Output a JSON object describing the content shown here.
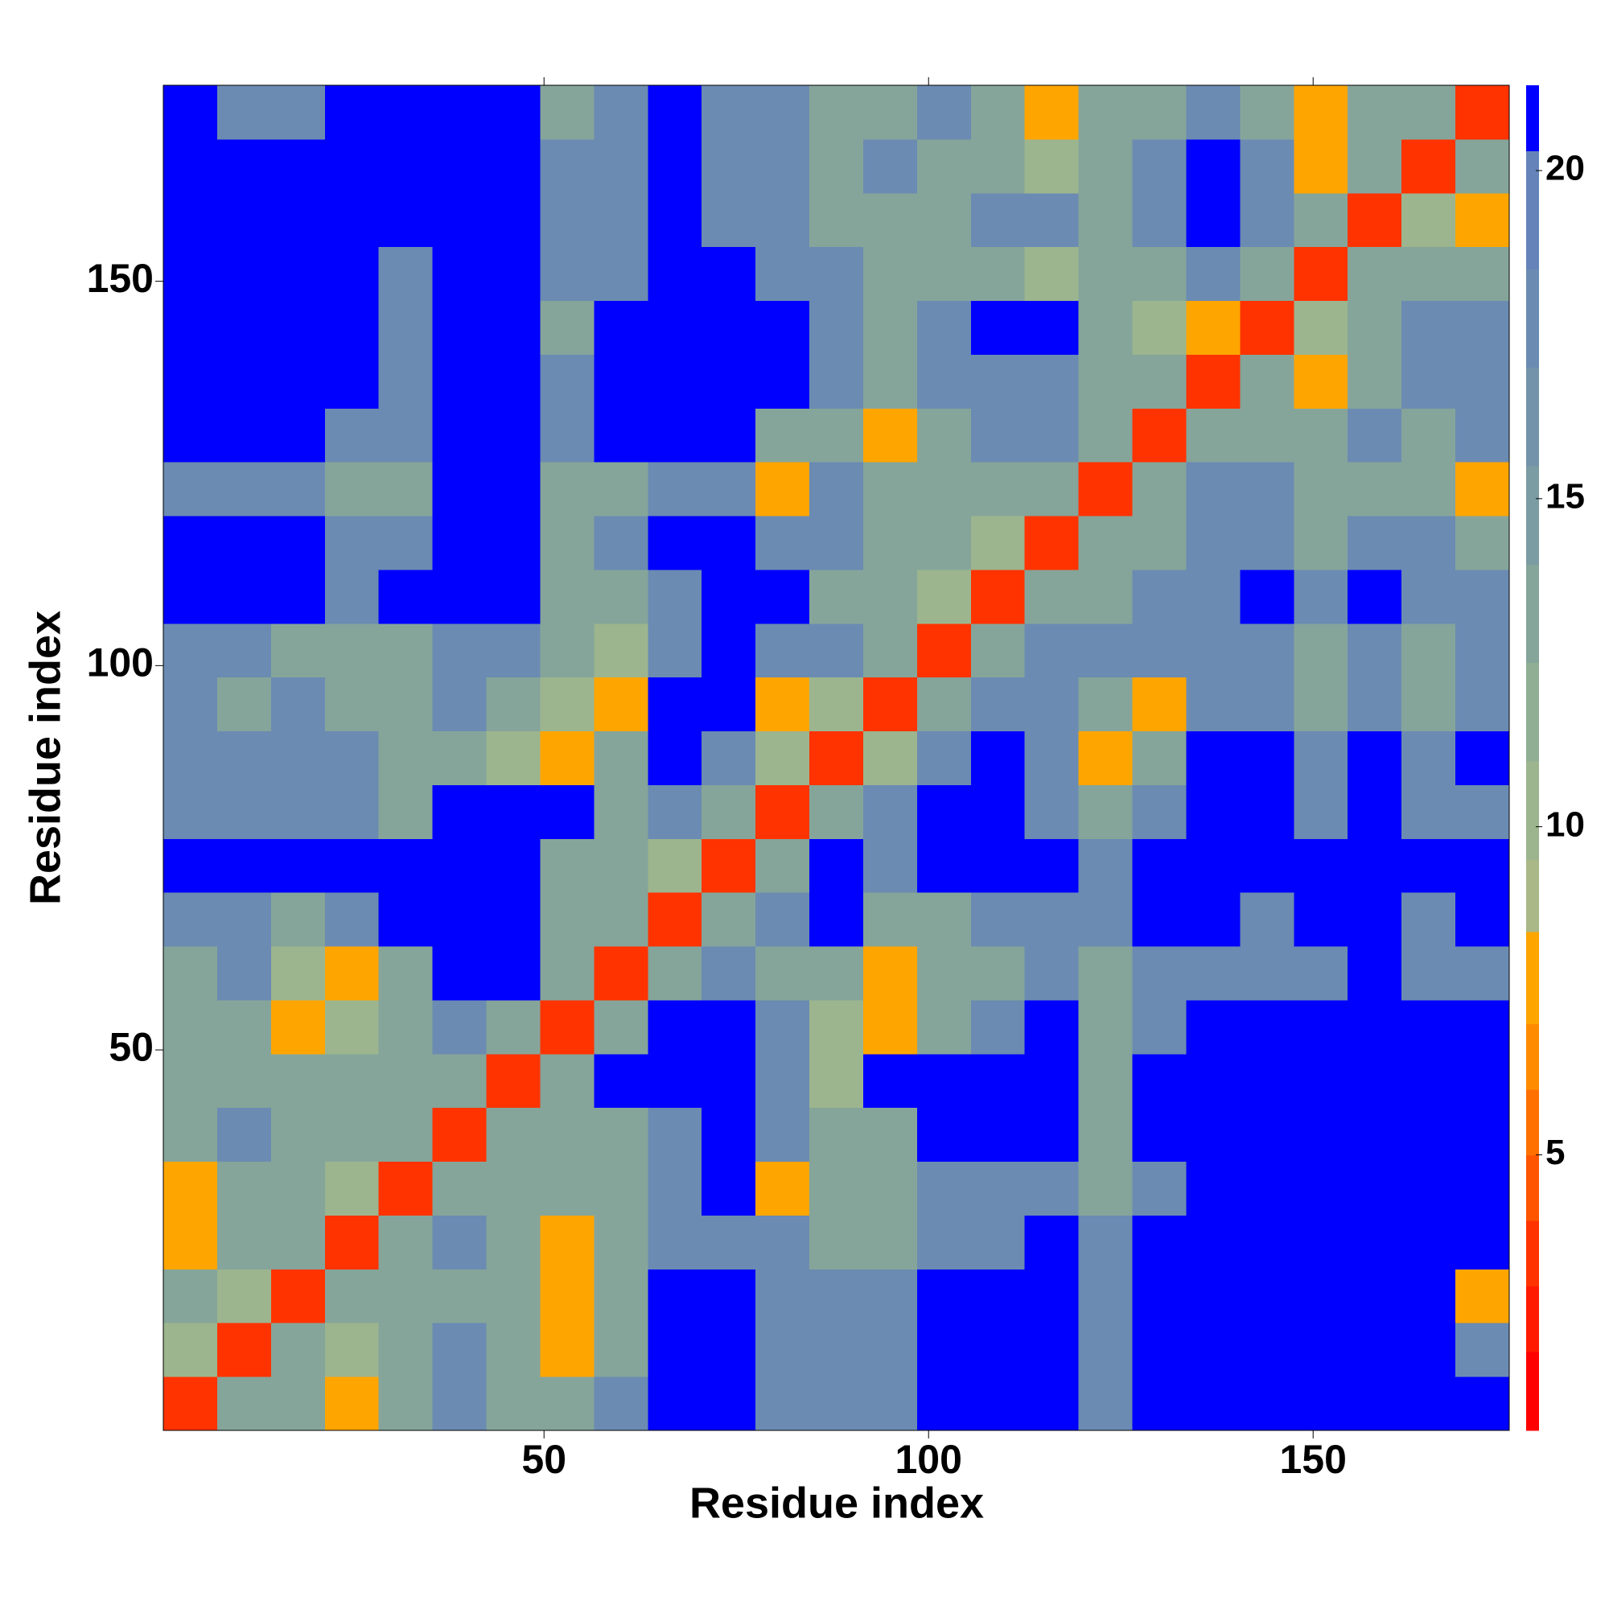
{
  "chart_data": {
    "type": "heatmap",
    "xlabel": "Residue index",
    "ylabel": "Residue index",
    "x": [
      4,
      11,
      18,
      25,
      32,
      39,
      46,
      53,
      60,
      67,
      74,
      81,
      88,
      95,
      102,
      109,
      116,
      123,
      130,
      137,
      144,
      151,
      158,
      165,
      172
    ],
    "y": [
      4,
      11,
      18,
      25,
      32,
      39,
      46,
      53,
      60,
      67,
      74,
      81,
      88,
      95,
      102,
      109,
      116,
      123,
      130,
      137,
      144,
      151,
      158,
      165,
      172
    ],
    "z": [
      [
        3,
        13,
        13,
        7,
        13,
        17,
        13,
        13,
        17,
        21,
        21,
        17,
        17,
        17,
        21,
        21,
        21,
        17,
        21,
        21,
        21,
        21,
        21,
        21,
        21
      ],
      [
        10,
        3,
        13,
        10,
        13,
        17,
        13,
        7,
        13,
        21,
        21,
        17,
        17,
        17,
        21,
        21,
        21,
        17,
        21,
        21,
        21,
        21,
        21,
        21,
        17
      ],
      [
        13,
        10,
        3,
        13,
        13,
        13,
        13,
        7,
        13,
        21,
        21,
        17,
        17,
        17,
        21,
        21,
        21,
        17,
        21,
        21,
        21,
        21,
        21,
        21,
        7
      ],
      [
        7,
        13,
        13,
        3,
        13,
        17,
        13,
        7,
        13,
        17,
        17,
        17,
        13,
        13,
        17,
        17,
        21,
        17,
        21,
        21,
        21,
        21,
        21,
        21,
        21
      ],
      [
        7,
        13,
        13,
        10,
        3,
        13,
        13,
        13,
        13,
        17,
        21,
        7,
        13,
        13,
        17,
        17,
        17,
        13,
        17,
        21,
        21,
        21,
        21,
        21,
        21
      ],
      [
        13,
        17,
        13,
        13,
        13,
        3,
        13,
        13,
        13,
        17,
        21,
        17,
        13,
        13,
        21,
        21,
        21,
        13,
        21,
        21,
        21,
        21,
        21,
        21,
        21
      ],
      [
        13,
        13,
        13,
        13,
        13,
        13,
        3,
        13,
        21,
        21,
        21,
        17,
        10,
        21,
        21,
        21,
        21,
        13,
        21,
        21,
        21,
        21,
        21,
        21,
        21
      ],
      [
        13,
        13,
        7,
        10,
        13,
        17,
        13,
        3,
        13,
        21,
        21,
        17,
        10,
        7,
        13,
        17,
        21,
        13,
        17,
        21,
        21,
        21,
        21,
        21,
        21
      ],
      [
        13,
        17,
        10,
        7,
        13,
        21,
        21,
        13,
        3,
        13,
        17,
        13,
        13,
        7,
        13,
        13,
        17,
        13,
        17,
        17,
        17,
        17,
        21,
        17,
        17
      ],
      [
        17,
        17,
        13,
        17,
        21,
        21,
        21,
        13,
        13,
        3,
        13,
        17,
        21,
        13,
        13,
        17,
        17,
        17,
        21,
        21,
        17,
        21,
        21,
        17,
        21
      ],
      [
        21,
        21,
        21,
        21,
        21,
        21,
        21,
        13,
        13,
        10,
        3,
        13,
        21,
        17,
        21,
        21,
        21,
        17,
        21,
        21,
        21,
        21,
        21,
        21,
        21
      ],
      [
        17,
        17,
        17,
        17,
        13,
        21,
        21,
        21,
        13,
        17,
        13,
        3,
        13,
        17,
        21,
        21,
        17,
        13,
        17,
        21,
        21,
        17,
        21,
        17,
        17
      ],
      [
        17,
        17,
        17,
        17,
        13,
        13,
        10,
        7,
        13,
        21,
        17,
        10,
        3,
        10,
        17,
        21,
        17,
        7,
        13,
        21,
        21,
        17,
        21,
        17,
        21
      ],
      [
        17,
        13,
        17,
        13,
        13,
        17,
        13,
        10,
        7,
        21,
        21,
        7,
        10,
        3,
        13,
        17,
        17,
        13,
        7,
        17,
        17,
        13,
        17,
        13,
        17
      ],
      [
        17,
        17,
        13,
        13,
        13,
        17,
        17,
        13,
        10,
        17,
        21,
        17,
        17,
        13,
        3,
        13,
        17,
        17,
        17,
        17,
        17,
        13,
        17,
        13,
        17
      ],
      [
        21,
        21,
        21,
        17,
        21,
        21,
        21,
        13,
        13,
        17,
        21,
        21,
        13,
        13,
        10,
        3,
        13,
        13,
        17,
        17,
        21,
        17,
        21,
        17,
        17
      ],
      [
        21,
        21,
        21,
        17,
        17,
        21,
        21,
        13,
        17,
        21,
        21,
        17,
        17,
        13,
        13,
        10,
        3,
        13,
        13,
        17,
        17,
        13,
        17,
        17,
        13
      ],
      [
        17,
        17,
        17,
        13,
        13,
        21,
        21,
        13,
        13,
        17,
        17,
        7,
        17,
        13,
        13,
        13,
        13,
        3,
        13,
        17,
        17,
        13,
        13,
        13,
        7
      ],
      [
        21,
        21,
        21,
        17,
        17,
        21,
        21,
        17,
        21,
        21,
        21,
        13,
        13,
        7,
        13,
        17,
        17,
        13,
        3,
        13,
        13,
        13,
        17,
        13,
        17
      ],
      [
        21,
        21,
        21,
        21,
        17,
        21,
        21,
        17,
        21,
        21,
        21,
        21,
        17,
        13,
        17,
        17,
        17,
        13,
        13,
        3,
        13,
        7,
        13,
        17,
        17
      ],
      [
        21,
        21,
        21,
        21,
        17,
        21,
        21,
        13,
        21,
        21,
        21,
        21,
        17,
        13,
        17,
        21,
        21,
        13,
        10,
        7,
        3,
        10,
        13,
        17,
        17
      ],
      [
        21,
        21,
        21,
        21,
        17,
        21,
        21,
        17,
        17,
        21,
        21,
        17,
        17,
        13,
        13,
        13,
        10,
        13,
        13,
        17,
        13,
        3,
        13,
        13,
        13
      ],
      [
        21,
        21,
        21,
        21,
        21,
        21,
        21,
        17,
        17,
        21,
        17,
        17,
        13,
        13,
        13,
        17,
        17,
        13,
        17,
        21,
        17,
        13,
        3,
        10,
        7
      ],
      [
        21,
        21,
        21,
        21,
        21,
        21,
        21,
        17,
        17,
        21,
        17,
        17,
        13,
        17,
        13,
        13,
        10,
        13,
        17,
        21,
        17,
        7,
        13,
        3,
        13
      ],
      [
        21,
        17,
        17,
        21,
        21,
        21,
        21,
        13,
        17,
        21,
        17,
        17,
        13,
        13,
        17,
        13,
        7,
        13,
        13,
        17,
        13,
        7,
        13,
        13,
        3
      ]
    ],
    "xlim": [
      0.5,
      175.5
    ],
    "ylim": [
      0.5,
      175.5
    ],
    "xticks": [
      50,
      100,
      150
    ],
    "yticks": [
      50,
      100,
      150
    ],
    "clim": [
      0.8,
      21.3
    ],
    "cticks": [
      5,
      10,
      15,
      20
    ],
    "color_bounds": [
      2,
      3,
      4,
      5,
      6,
      7,
      8.4,
      9.5,
      11,
      12.5,
      14,
      15.5,
      17,
      18.5,
      20.3
    ],
    "colors": [
      "#ff0000",
      "#ff1a00",
      "#ff3300",
      "#ff5500",
      "#ff7000",
      "#ff8c00",
      "#ffa500",
      "#aab888",
      "#9cb58e",
      "#8fae93",
      "#85a59a",
      "#7b9ca2",
      "#7393aa",
      "#6b8bb2",
      "#6583b8",
      "#0000ff"
    ]
  }
}
